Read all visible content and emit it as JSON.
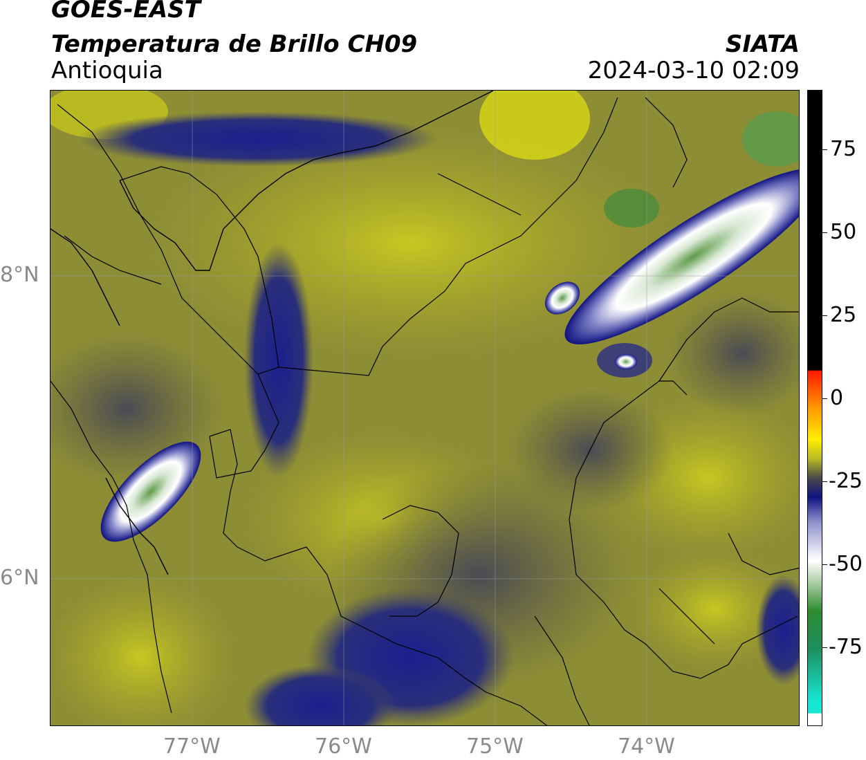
{
  "header": {
    "satellite": "GOES-EAST",
    "product": "Temperatura de Brillo CH09",
    "region": "Antioquia",
    "org": "SIATA",
    "datetime": "2024-03-10 02:09"
  },
  "map": {
    "lat_labels": [
      "8°N",
      "6°N"
    ],
    "lon_labels": [
      "77°W",
      "76°W",
      "75°W",
      "74°W"
    ]
  },
  "colorbar": {
    "tick_labels": [
      "75",
      "50",
      "25",
      "0",
      "-25",
      "-50",
      "-75"
    ],
    "range": [
      -95,
      90
    ],
    "colors": {
      "black": "#000000",
      "red": "#ff1a00",
      "orange": "#ff9900",
      "yellow": "#ffee00",
      "olive": "#b9b925",
      "gray": "#4a4a4a",
      "navy": "#10137f",
      "white": "#ffffff",
      "green": "#2e8c2e",
      "cyan": "#17e6d2"
    }
  }
}
